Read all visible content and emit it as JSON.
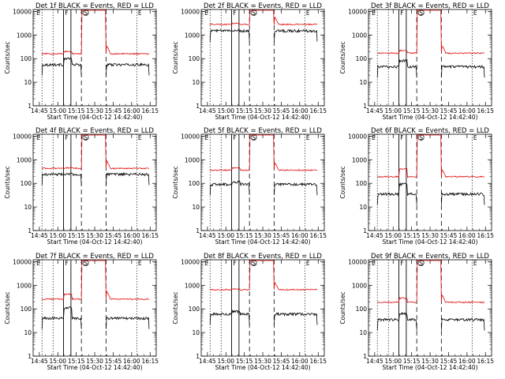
{
  "figure": {
    "time_ticks": [
      "14:45",
      "15:00",
      "15:15",
      "15:30",
      "15:45",
      "16:00",
      "16:15"
    ],
    "y_ticks": [
      "1",
      "10",
      "100",
      "1000",
      "10000"
    ],
    "xlabel": "Start Time (04-Oct-12 14:42:40)",
    "ylabel": "Counts/sec",
    "colors": {
      "events": "#000000",
      "lld": "#e01010",
      "axes": "#000000"
    },
    "markers": [
      "E",
      "F",
      "S",
      "E"
    ]
  },
  "chart_data": [
    {
      "type": "line",
      "title": "Det 1f BLACK = Events, RED = LLD",
      "xlim_min": [
        -2.7,
        97.3
      ],
      "ylim": [
        1,
        12000
      ],
      "y_scale": "log",
      "series": [
        {
          "name": "Events",
          "level": 55,
          "spike": 1.8
        },
        {
          "name": "LLD",
          "level": 160,
          "spike": 1.25
        }
      ],
      "flare_min": [
        22,
        28
      ]
    },
    {
      "type": "line",
      "title": "Det 2f BLACK = Events, RED = LLD",
      "xlim_min": [
        -2.7,
        97.3
      ],
      "ylim": [
        1,
        12000
      ],
      "y_scale": "log",
      "series": [
        {
          "name": "Events",
          "level": 1500,
          "spike": 1.05
        },
        {
          "name": "LLD",
          "level": 2800,
          "spike": 1.1
        }
      ],
      "flare_min": [
        22,
        28
      ]
    },
    {
      "type": "line",
      "title": "Det 3f BLACK = Events, RED = LLD",
      "xlim_min": [
        -2.7,
        97.3
      ],
      "ylim": [
        1,
        12000
      ],
      "y_scale": "log",
      "series": [
        {
          "name": "Events",
          "level": 45,
          "spike": 1.8
        },
        {
          "name": "LLD",
          "level": 170,
          "spike": 1.3
        }
      ],
      "flare_min": [
        22,
        28
      ]
    },
    {
      "type": "line",
      "title": "Det 4f BLACK = Events, RED = LLD",
      "xlim_min": [
        -2.7,
        97.3
      ],
      "ylim": [
        1,
        12000
      ],
      "y_scale": "log",
      "series": [
        {
          "name": "Events",
          "level": 240,
          "spike": 1.05
        },
        {
          "name": "LLD",
          "level": 430,
          "spike": 1.05
        }
      ],
      "flare_min": [
        22,
        28
      ]
    },
    {
      "type": "line",
      "title": "Det 5f BLACK = Events, RED = LLD",
      "xlim_min": [
        -2.7,
        97.3
      ],
      "ylim": [
        1,
        12000
      ],
      "y_scale": "log",
      "series": [
        {
          "name": "Events",
          "level": 90,
          "spike": 1.3
        },
        {
          "name": "LLD",
          "level": 360,
          "spike": 1.25
        }
      ],
      "flare_min": [
        22,
        28
      ]
    },
    {
      "type": "line",
      "title": "Det 6f BLACK = Events, RED = LLD",
      "xlim_min": [
        -2.7,
        97.3
      ],
      "ylim": [
        1,
        12000
      ],
      "y_scale": "log",
      "series": [
        {
          "name": "Events",
          "level": 35,
          "spike": 2.6
        },
        {
          "name": "LLD",
          "level": 190,
          "spike": 2.2
        }
      ],
      "flare_min": [
        22,
        28
      ]
    },
    {
      "type": "line",
      "title": "Det 7f BLACK = Events, RED = LLD",
      "xlim_min": [
        -2.7,
        97.3
      ],
      "ylim": [
        1,
        12000
      ],
      "y_scale": "log",
      "series": [
        {
          "name": "Events",
          "level": 40,
          "spike": 2.8
        },
        {
          "name": "LLD",
          "level": 260,
          "spike": 1.6
        }
      ],
      "flare_min": [
        22,
        28
      ]
    },
    {
      "type": "line",
      "title": "Det 8f BLACK = Events, RED = LLD",
      "xlim_min": [
        -2.7,
        97.3
      ],
      "ylim": [
        1,
        12000
      ],
      "y_scale": "log",
      "series": [
        {
          "name": "Events",
          "level": 60,
          "spike": 1.3
        },
        {
          "name": "LLD",
          "level": 650,
          "spike": 1.1
        }
      ],
      "flare_min": [
        22,
        28
      ]
    },
    {
      "type": "line",
      "title": "Det 9f BLACK = Events, RED = LLD",
      "xlim_min": [
        -2.7,
        97.3
      ],
      "ylim": [
        1,
        12000
      ],
      "y_scale": "log",
      "series": [
        {
          "name": "Events",
          "level": 35,
          "spike": 1.8
        },
        {
          "name": "LLD",
          "level": 190,
          "spike": 1.5
        }
      ],
      "flare_min": [
        22,
        28
      ]
    }
  ]
}
